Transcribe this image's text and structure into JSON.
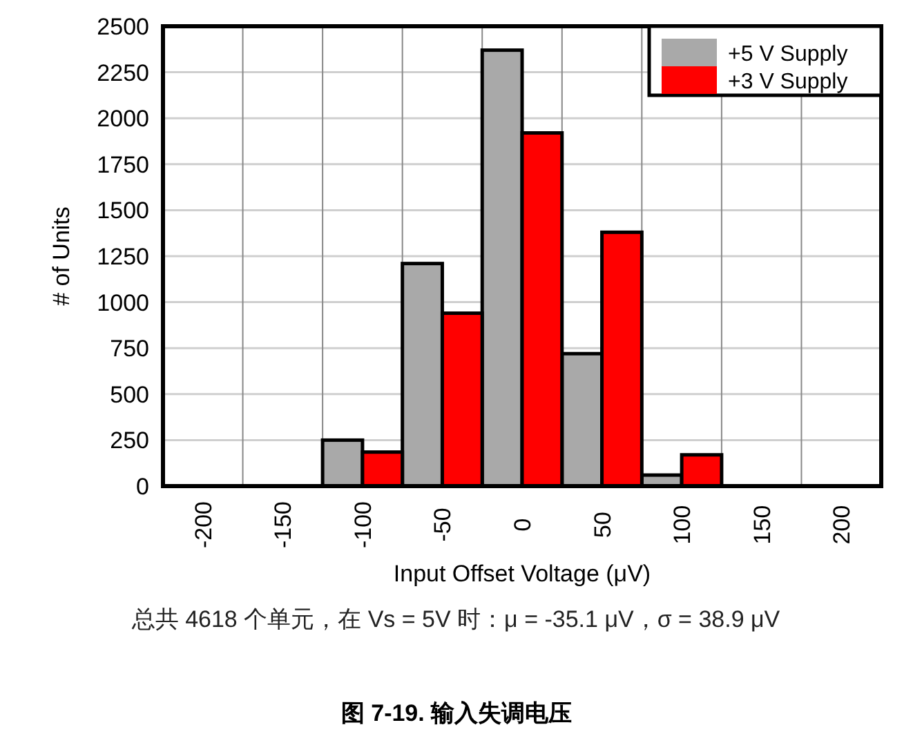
{
  "chart_data": {
    "type": "histogram",
    "title": "图 7-19. 输入失调电压",
    "xlabel": "Input Offset Voltage (μV)",
    "ylabel": "# of Units",
    "annotations": [
      "总共 4618 个单元，在 Vs = 5V 时：μ = -35.1 μV，σ = 38.9 μV"
    ],
    "bins": [
      -125,
      -100,
      -75,
      -50,
      -25,
      0,
      25,
      50,
      75,
      100,
      125
    ],
    "series": [
      {
        "name": "+5 V Supply",
        "color": "#a9a9a9",
        "values": [
          250,
          null,
          1210,
          null,
          2370,
          null,
          720,
          null,
          60,
          null
        ]
      },
      {
        "name": "+3 V Supply",
        "color": "#ff0000",
        "values": [
          null,
          185,
          null,
          940,
          null,
          1920,
          null,
          1380,
          null,
          170
        ]
      }
    ],
    "xlim": [
      -225,
      225
    ],
    "xticks": [
      -200,
      {
        "value": -175,
        "label": null
      },
      -150,
      {
        "value": -125,
        "label": null
      },
      -100,
      {
        "value": -75,
        "label": null
      },
      -50,
      {
        "value": -25,
        "label": null
      },
      0,
      {
        "value": 25,
        "label": null
      },
      50,
      {
        "value": 75,
        "label": null
      },
      100,
      {
        "value": 125,
        "label": null
      },
      150,
      {
        "value": 175,
        "label": null
      },
      200
    ],
    "ylim": [
      0,
      2500
    ],
    "yticks": [
      0,
      250,
      500,
      750,
      1000,
      1250,
      1500,
      1750,
      2000,
      2250,
      2500
    ],
    "grid": true,
    "legend": "top right"
  }
}
